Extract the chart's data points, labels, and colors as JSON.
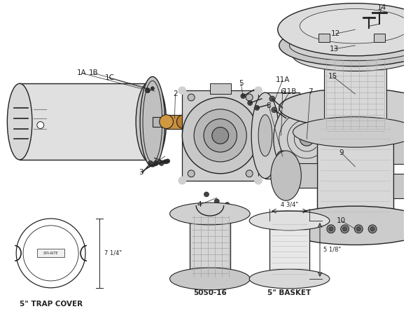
{
  "background_color": "#ffffff",
  "line_color": "#222222",
  "figsize": [
    5.8,
    4.41
  ],
  "dpi": 100,
  "xlim": [
    0,
    580
  ],
  "ylim": [
    0,
    441
  ]
}
